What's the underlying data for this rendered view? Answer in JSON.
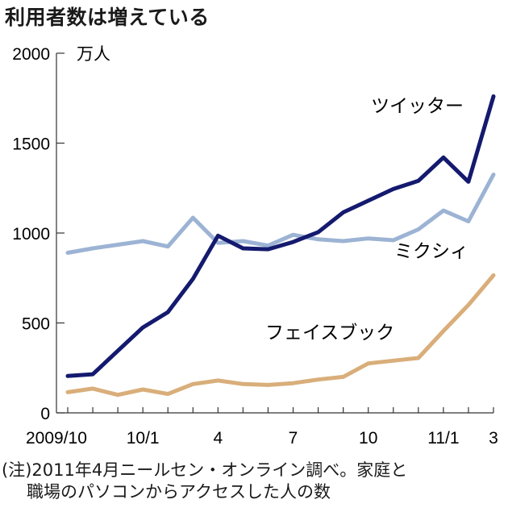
{
  "title": "利用者数は増えている",
  "note": {
    "line1": "(注)2011年4月ニールセン・オンライン調べ。家庭と",
    "line2": "職場のパソコンからアクセスした人の数"
  },
  "chart_data": {
    "type": "line",
    "title": "利用者数は増えている",
    "ylabel": "万人",
    "ylim": [
      0,
      2000
    ],
    "yticks": [
      0,
      500,
      1000,
      1500,
      2000
    ],
    "x": [
      "2009/10",
      "2009/11",
      "2009/12",
      "2010/1",
      "2010/2",
      "2010/3",
      "2010/4",
      "2010/5",
      "2010/6",
      "2010/7",
      "2010/8",
      "2010/9",
      "2010/10",
      "2010/11",
      "2010/12",
      "2011/1",
      "2011/2",
      "2011/3"
    ],
    "xtick_labels": [
      {
        "index": 0,
        "label": "2009/10"
      },
      {
        "index": 3,
        "label": "10/1"
      },
      {
        "index": 6,
        "label": "4"
      },
      {
        "index": 9,
        "label": "7"
      },
      {
        "index": 12,
        "label": "10"
      },
      {
        "index": 15,
        "label": "11/1"
      },
      {
        "index": 17,
        "label": "3"
      }
    ],
    "series": [
      {
        "name": "ツイッター",
        "color": "#141a6e",
        "values": [
          205,
          215,
          345,
          475,
          560,
          745,
          985,
          915,
          910,
          950,
          1005,
          1115,
          1180,
          1245,
          1290,
          1420,
          1285,
          1760
        ]
      },
      {
        "name": "ミクシィ",
        "color": "#9cb3d4",
        "values": [
          890,
          915,
          935,
          955,
          925,
          1085,
          945,
          955,
          930,
          990,
          965,
          955,
          970,
          960,
          1020,
          1125,
          1065,
          1325
        ]
      },
      {
        "name": "フェイスブック",
        "color": "#d9ae7a",
        "values": [
          115,
          135,
          100,
          130,
          105,
          160,
          180,
          160,
          155,
          165,
          185,
          200,
          275,
          290,
          305,
          455,
          600,
          765
        ]
      }
    ]
  }
}
